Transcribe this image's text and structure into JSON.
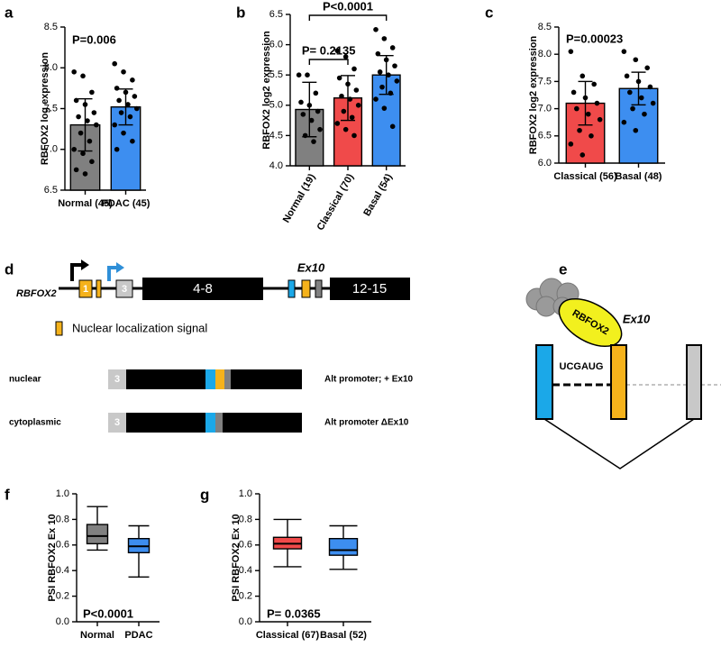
{
  "chart_data": [
    {
      "panel": "a",
      "type": "bar",
      "ylabel": "RBFOX2 log expression",
      "annotations": [
        "P=0.006"
      ],
      "categories": [
        "Normal (45)",
        "PDAC (45)"
      ],
      "values": [
        7.3,
        7.52
      ],
      "errors": [
        0.32,
        0.22
      ],
      "colors": [
        "#808080",
        "#3d8ef0"
      ],
      "points": [
        [
          7.95,
          7.9,
          7.7,
          7.6,
          7.55,
          7.45,
          7.4,
          7.35,
          7.3,
          7.2,
          7.1,
          7.0,
          6.95,
          6.85,
          6.75,
          6.7
        ],
        [
          8.05,
          7.95,
          7.85,
          7.75,
          7.7,
          7.65,
          7.6,
          7.55,
          7.5,
          7.45,
          7.4,
          7.3,
          7.2,
          7.1,
          7.0
        ]
      ],
      "ylim": [
        6.5,
        8.5
      ],
      "yticks": [
        6.5,
        {
          "value": 7,
          "label": "7.0"
        },
        7.5,
        {
          "value": 8,
          "label": "8.0"
        },
        8.5
      ]
    },
    {
      "panel": "b",
      "type": "bar",
      "ylabel": "RBFOX2 log2 expression",
      "annotations": [
        "P= 0.2135",
        "P<0.0001"
      ],
      "categories": [
        "Normal (19)",
        "Classical (70)",
        "Basal (54)"
      ],
      "values": [
        4.93,
        5.12,
        5.5
      ],
      "errors": [
        0.45,
        0.37,
        0.32
      ],
      "colors": [
        "#808080",
        "#f04a4a",
        "#3d8ef0"
      ],
      "points": [
        [
          5.5,
          5.5,
          5.2,
          5.05,
          5.0,
          4.9,
          4.85,
          4.75,
          4.6,
          4.5,
          4.4
        ],
        [
          5.9,
          5.8,
          5.6,
          5.45,
          5.35,
          5.25,
          5.15,
          5.1,
          5.0,
          4.9,
          4.8,
          4.7,
          4.6,
          4.5
        ],
        [
          6.25,
          6.1,
          5.95,
          5.85,
          5.75,
          5.65,
          5.55,
          5.5,
          5.4,
          5.3,
          5.2,
          5.1,
          4.95,
          4.65
        ]
      ],
      "ylim": [
        4,
        6.5
      ],
      "yticks": [
        {
          "value": 4,
          "label": "4.0"
        },
        4.5,
        {
          "value": 5,
          "label": "5.0"
        },
        5.5,
        {
          "value": 6,
          "label": "6.0"
        },
        6.5
      ]
    },
    {
      "panel": "c",
      "type": "bar",
      "ylabel": "RBFOX2 log2 expression",
      "annotations": [
        "P=0.00023"
      ],
      "categories": [
        "Classical (56)",
        "Basal (48)"
      ],
      "values": [
        7.1,
        7.37
      ],
      "errors": [
        0.4,
        0.3
      ],
      "colors": [
        "#f04a4a",
        "#3d8ef0"
      ],
      "points": [
        [
          8.05,
          7.6,
          7.45,
          7.3,
          7.2,
          7.1,
          7.0,
          6.9,
          6.8,
          6.6,
          6.5,
          6.35,
          6.15
        ],
        [
          8.05,
          7.9,
          7.75,
          7.6,
          7.5,
          7.4,
          7.3,
          7.2,
          7.1,
          7.0,
          6.9,
          6.75,
          6.6
        ]
      ],
      "ylim": [
        6,
        8.5
      ],
      "yticks": [
        {
          "value": 6,
          "label": "6.0"
        },
        6.5,
        {
          "value": 7,
          "label": "7.0"
        },
        7.5,
        {
          "value": 8,
          "label": "8.0"
        },
        8.5
      ]
    },
    {
      "panel": "f",
      "type": "box",
      "ylabel": "PSI RBFOX2 Ex 10",
      "annotations": [
        "P<0.0001"
      ],
      "categories": [
        "Normal",
        "PDAC"
      ],
      "colors": [
        "#808080",
        "#3d8ef0"
      ],
      "stats": [
        {
          "min": 0.56,
          "q1": 0.61,
          "median": 0.67,
          "q3": 0.76,
          "max": 0.9
        },
        {
          "min": 0.35,
          "q1": 0.54,
          "median": 0.59,
          "q3": 0.65,
          "max": 0.75
        }
      ],
      "ylim": [
        0,
        1
      ],
      "yticks": [
        {
          "value": 0,
          "label": "0.0"
        },
        0.2,
        0.4,
        0.6,
        0.8,
        {
          "value": 1,
          "label": "1.0"
        }
      ]
    },
    {
      "panel": "g",
      "type": "box",
      "ylabel": "PSI RBFOX2 Ex 10",
      "annotations": [
        "P= 0.0365"
      ],
      "categories": [
        "Classical (67)",
        "Basal (52)"
      ],
      "colors": [
        "#f04a4a",
        "#3d8ef0"
      ],
      "stats": [
        {
          "min": 0.43,
          "q1": 0.57,
          "median": 0.61,
          "q3": 0.66,
          "max": 0.8
        },
        {
          "min": 0.41,
          "q1": 0.52,
          "median": 0.56,
          "q3": 0.65,
          "max": 0.75
        }
      ],
      "ylim": [
        0,
        1
      ],
      "yticks": [
        {
          "value": 0,
          "label": "0.0"
        },
        0.2,
        0.4,
        0.6,
        0.8,
        {
          "value": 1,
          "label": "1.0"
        }
      ]
    }
  ],
  "gene_diagram": {
    "panel": "d",
    "gene": "RBFOX2",
    "exon1": "1",
    "exon3": "3",
    "exons4_8": "4-8",
    "ex10": "Ex10",
    "exons12_15": "12-15",
    "legend": "Nuclear localization signal",
    "isoforms": [
      {
        "name": "nuclear",
        "exon": "3",
        "note": "Alt promoter; + Ex10"
      },
      {
        "name": "cytoplasmic",
        "exon": "3",
        "note": "Alt promoter ΔEx10"
      }
    ]
  },
  "splicing_diagram": {
    "panel": "e",
    "protein": "RBFOX2",
    "exon": "Ex10",
    "motif": "UCGAUG"
  }
}
